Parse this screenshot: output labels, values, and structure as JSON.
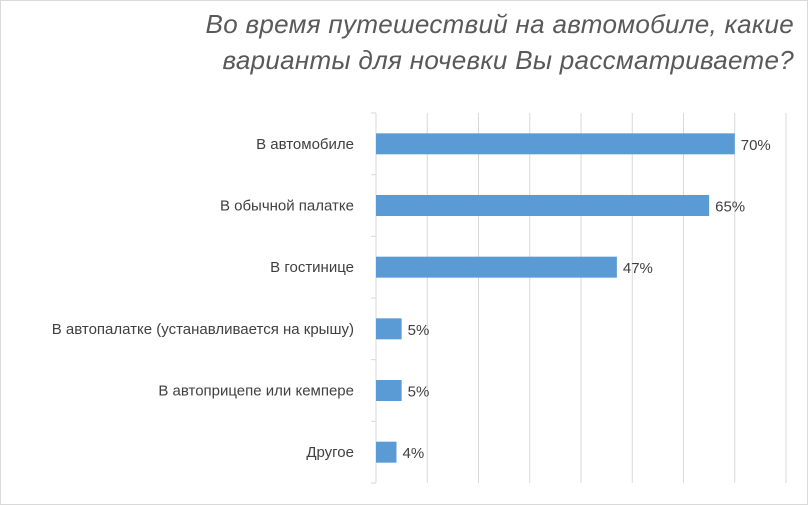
{
  "chart_data": {
    "type": "bar",
    "orientation": "horizontal",
    "title_lines": [
      "Во время путешествий на автомобиле, какие",
      "варианты для ночевки Вы рассматриваете?"
    ],
    "categories": [
      "В автомобиле",
      "В обычной палатке",
      "В гостинице",
      "В автопалатке (устанавливается на крышу)",
      "В автоприцепе или кемпере",
      "Другое"
    ],
    "values": [
      70,
      65,
      47,
      5,
      5,
      4
    ],
    "value_labels": [
      "70%",
      "65%",
      "47%",
      "5%",
      "5%",
      "4%"
    ],
    "unit": "%",
    "xlim": [
      0,
      80
    ],
    "grid": true,
    "bar_color": "#5b9bd5",
    "grid_color": "#d9d9d9",
    "xlabel": "",
    "ylabel": ""
  }
}
